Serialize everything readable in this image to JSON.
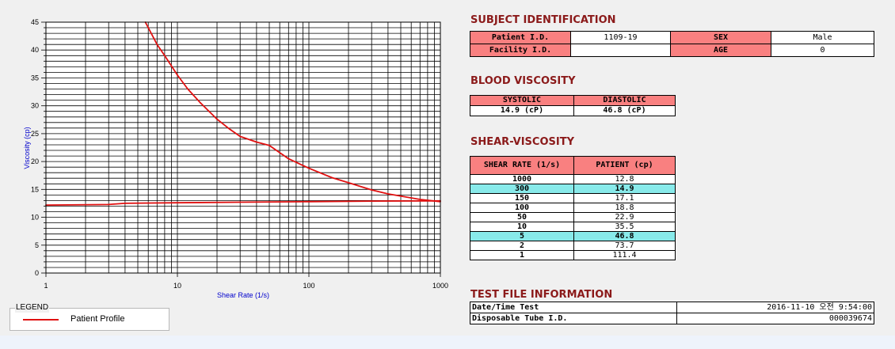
{
  "chart_data": {
    "type": "line",
    "xlabel": "Shear Rate (1/s)",
    "ylabel": "Viscosity (cp)",
    "xscale": "log",
    "xlim": [
      1,
      1000
    ],
    "ylim": [
      0,
      45
    ],
    "x_ticks": [
      "1",
      "10",
      "100",
      "1000"
    ],
    "y_ticks": [
      "0",
      "5",
      "10",
      "15",
      "20",
      "25",
      "30",
      "35",
      "40",
      "45"
    ],
    "grid": true,
    "series": [
      {
        "name": "Patient Profile",
        "color": "#e01010",
        "x": [
          5.7,
          6,
          7,
          8,
          10,
          12,
          15,
          20,
          25,
          30,
          40,
          50,
          70,
          100,
          150,
          200,
          300,
          400,
          500,
          700,
          1000
        ],
        "y": [
          45,
          44,
          41,
          39,
          35.5,
          33,
          30.5,
          27.6,
          25.8,
          24.5,
          23.5,
          22.9,
          20.5,
          18.8,
          17.1,
          16.2,
          14.9,
          14.2,
          13.8,
          13.2,
          12.8
        ]
      },
      {
        "name": "",
        "color": "#e01010",
        "x": [
          1,
          3,
          4,
          10,
          30,
          100,
          300,
          1000
        ],
        "y": [
          12.2,
          12.3,
          12.5,
          12.6,
          12.7,
          12.8,
          12.9,
          12.95
        ]
      }
    ]
  },
  "legend": {
    "title": "LEGEND",
    "label": "Patient Profile"
  },
  "subject": {
    "title": "SUBJECT IDENTIFICATION",
    "patient_id_label": "Patient I.D.",
    "patient_id": "1109-19",
    "sex_label": "SEX",
    "sex": "Male",
    "facility_label": "Facility I.D.",
    "facility": "",
    "age_label": "AGE",
    "age": "0"
  },
  "blood": {
    "title": "BLOOD VISCOSITY",
    "systolic_label": "SYSTOLIC",
    "systolic": "14.9 (cP)",
    "diastolic_label": "DIASTOLIC",
    "diastolic": "46.8 (cP)"
  },
  "shear": {
    "title": "SHEAR-VISCOSITY",
    "col_rate": "SHEAR RATE (1/s)",
    "col_patient": "PATIENT (cp)",
    "rows": [
      {
        "rate": "1000",
        "value": "12.8"
      },
      {
        "rate": "300",
        "value": "14.9"
      },
      {
        "rate": "150",
        "value": "17.1"
      },
      {
        "rate": "100",
        "value": "18.8"
      },
      {
        "rate": "50",
        "value": "22.9"
      },
      {
        "rate": "10",
        "value": "35.5"
      },
      {
        "rate": "5",
        "value": "46.8"
      },
      {
        "rate": "2",
        "value": "73.7"
      },
      {
        "rate": "1",
        "value": "111.4"
      }
    ]
  },
  "testfile": {
    "title": "TEST FILE INFORMATION",
    "datetime_label": "Date/Time Test",
    "datetime": "2016-11-10  오전 9:54:00",
    "tube_label": "Disposable Tube I.D.",
    "tube": "000039674"
  }
}
